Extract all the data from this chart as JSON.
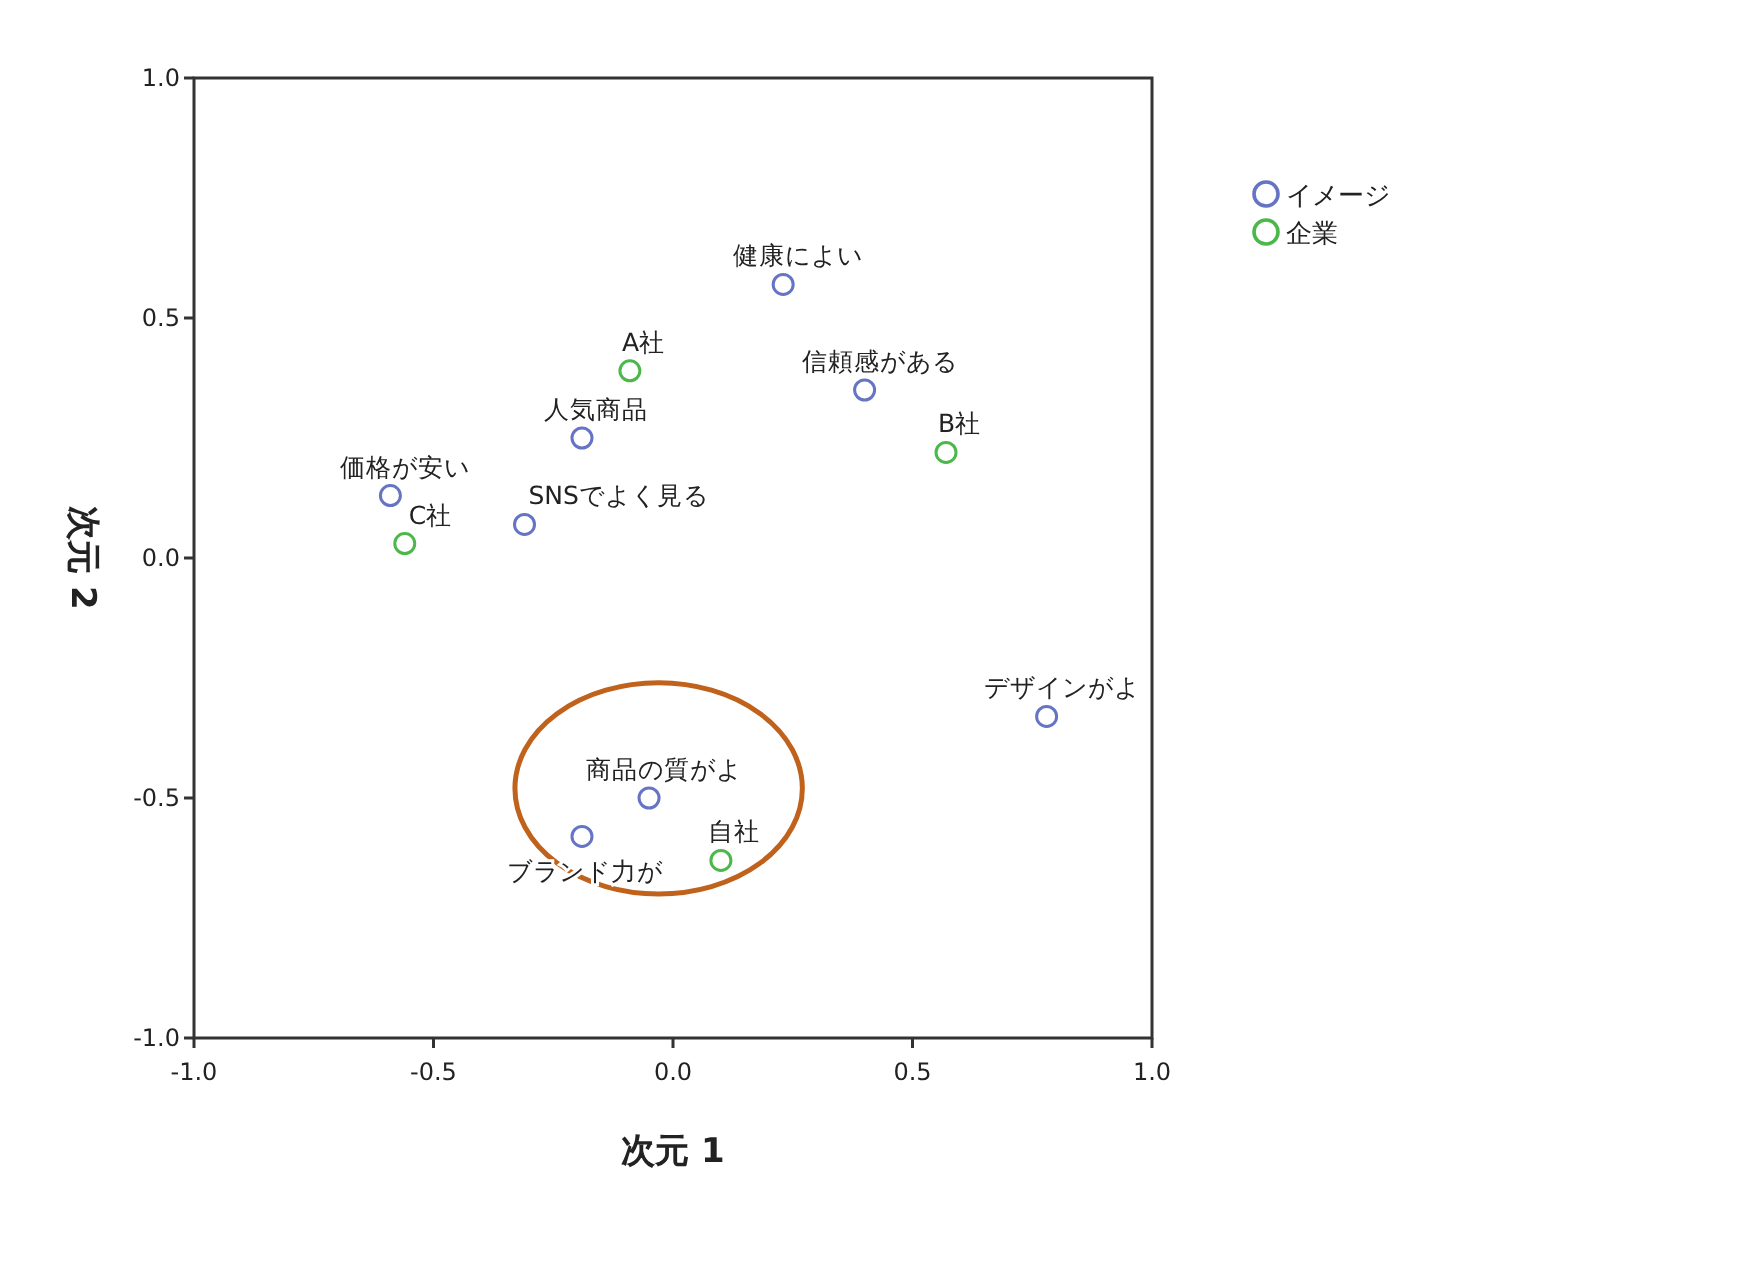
{
  "chart_data": {
    "type": "scatter",
    "xlabel": "次元 1",
    "ylabel": "次元 2",
    "xlim": [
      -1.0,
      1.0
    ],
    "ylim": [
      -1.0,
      1.0
    ],
    "xticks": [
      {
        "value": -1.0,
        "label": "-1.0"
      },
      {
        "value": -0.5,
        "label": "-0.5"
      },
      {
        "value": 0.0,
        "label": "0.0"
      },
      {
        "value": 0.5,
        "label": "0.5"
      },
      {
        "value": 1.0,
        "label": "1.0"
      }
    ],
    "yticks": [
      {
        "value": -1.0,
        "label": "-1.0"
      },
      {
        "value": -0.5,
        "label": "-0.5"
      },
      {
        "value": 0.0,
        "label": "0.0"
      },
      {
        "value": 0.5,
        "label": "0.5"
      },
      {
        "value": 1.0,
        "label": "1.0"
      }
    ],
    "grid": false,
    "legend": "top right",
    "marker": "circle",
    "series": [
      {
        "name": "イメージ",
        "color": "#6574c4",
        "x": [
          0.23,
          0.4,
          -0.19,
          -0.59,
          -0.31,
          0.78,
          -0.05,
          -0.19
        ],
        "values": [
          0.57,
          0.35,
          0.25,
          0.13,
          0.07,
          -0.33,
          -0.5,
          -0.58
        ]
      },
      {
        "name": "企業",
        "color": "#4cb84c",
        "x": [
          -0.09,
          0.57,
          -0.56,
          0.1
        ],
        "values": [
          0.39,
          0.22,
          0.03,
          -0.63
        ]
      }
    ],
    "annotations": [
      {
        "text": "健康によい",
        "x": 0.23,
        "y": 0.57
      },
      {
        "text": "信頼感がある",
        "x": 0.4,
        "y": 0.35
      },
      {
        "text": "人気商品",
        "x": -0.19,
        "y": 0.25
      },
      {
        "text": "価格が安い",
        "x": -0.59,
        "y": 0.13
      },
      {
        "text": "SNSでよく見る",
        "x": -0.31,
        "y": 0.07
      },
      {
        "text": "デザインがよ",
        "x": 0.78,
        "y": -0.33
      },
      {
        "text": "商品の質がよ",
        "x": -0.05,
        "y": -0.5
      },
      {
        "text": "ブランド力が",
        "x": -0.19,
        "y": -0.58
      },
      {
        "text": "A社",
        "x": -0.09,
        "y": 0.39
      },
      {
        "text": "B社",
        "x": 0.57,
        "y": 0.22
      },
      {
        "text": "C社",
        "x": -0.56,
        "y": 0.03
      },
      {
        "text": "自社",
        "x": 0.1,
        "y": -0.63
      }
    ]
  }
}
